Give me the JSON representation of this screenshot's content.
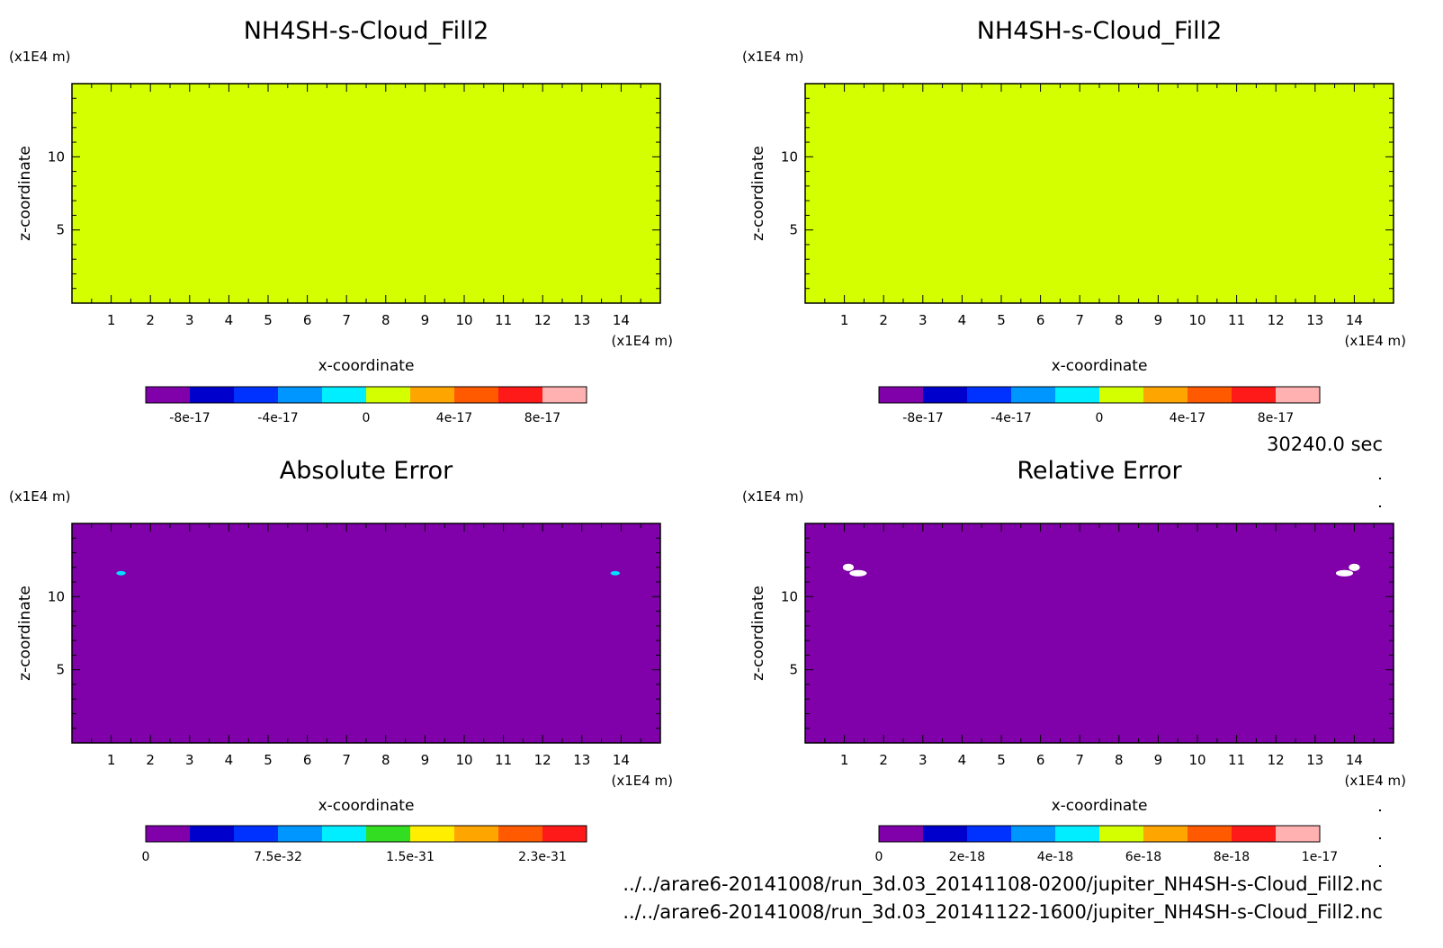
{
  "time_label": "30240.0 sec",
  "footer": {
    "line1": "../../arare6-20141008/run_3d.03_20141108-0200/jupiter_NH4SH-s-Cloud_Fill2.nc",
    "line2": "../../arare6-20141008/run_3d.03_20141122-1600/jupiter_NH4SH-s-Cloud_Fill2.nc"
  },
  "colors": {
    "fill_zero": "#d4ff00",
    "fill_low": "#8000aa",
    "cyan": "#00e0ff",
    "white": "#ffffff"
  },
  "chart_data": [
    {
      "type": "heatmap",
      "title": "NH4SH-s-Cloud_Fill2",
      "xlabel": "x-coordinate",
      "ylabel": "z-coordinate",
      "x_unit": "(x1E4 m)",
      "y_unit": "(x1E4 m)",
      "xlim": [
        0,
        15
      ],
      "ylim": [
        0,
        15
      ],
      "x_ticks": [
        1,
        2,
        3,
        4,
        5,
        6,
        7,
        8,
        9,
        10,
        11,
        12,
        13,
        14
      ],
      "y_ticks": [
        5,
        10
      ],
      "background": "#d4ff00",
      "features": [],
      "colorbar": {
        "colors": [
          "#8000aa",
          "#0000cd",
          "#0032ff",
          "#0096ff",
          "#00eeff",
          "#d4ff00",
          "#ffa500",
          "#ff5a00",
          "#ff1a1a",
          "#ffb0b0"
        ],
        "labels": [
          "-8e-17",
          "-4e-17",
          "0",
          "4e-17",
          "8e-17"
        ],
        "label_positions": [
          1,
          3,
          5,
          7,
          9
        ]
      }
    },
    {
      "type": "heatmap",
      "title": "NH4SH-s-Cloud_Fill2",
      "xlabel": "x-coordinate",
      "ylabel": "z-coordinate",
      "x_unit": "(x1E4 m)",
      "y_unit": "(x1E4 m)",
      "xlim": [
        0,
        15
      ],
      "ylim": [
        0,
        15
      ],
      "x_ticks": [
        1,
        2,
        3,
        4,
        5,
        6,
        7,
        8,
        9,
        10,
        11,
        12,
        13,
        14
      ],
      "y_ticks": [
        5,
        10
      ],
      "background": "#d4ff00",
      "features": [],
      "colorbar": {
        "colors": [
          "#8000aa",
          "#0000cd",
          "#0032ff",
          "#0096ff",
          "#00eeff",
          "#d4ff00",
          "#ffa500",
          "#ff5a00",
          "#ff1a1a",
          "#ffb0b0"
        ],
        "labels": [
          "-8e-17",
          "-4e-17",
          "0",
          "4e-17",
          "8e-17"
        ],
        "label_positions": [
          1,
          3,
          5,
          7,
          9
        ]
      }
    },
    {
      "type": "heatmap",
      "title": "Absolute Error",
      "xlabel": "x-coordinate",
      "ylabel": "z-coordinate",
      "x_unit": "(x1E4 m)",
      "y_unit": "(x1E4 m)",
      "xlim": [
        0,
        15
      ],
      "ylim": [
        0,
        15
      ],
      "x_ticks": [
        1,
        2,
        3,
        4,
        5,
        6,
        7,
        8,
        9,
        10,
        11,
        12,
        13,
        14
      ],
      "y_ticks": [
        5,
        10
      ],
      "background": "#8000aa",
      "features": [
        {
          "x": 1.25,
          "z": 11.6,
          "rx": 0.12,
          "rz": 0.15,
          "color": "#00e0ff"
        },
        {
          "x": 13.85,
          "z": 11.6,
          "rx": 0.12,
          "rz": 0.15,
          "color": "#00e0ff"
        }
      ],
      "colorbar": {
        "colors": [
          "#8000aa",
          "#0000cd",
          "#0032ff",
          "#0096ff",
          "#00eeff",
          "#33dd22",
          "#ffee00",
          "#ffa500",
          "#ff5a00",
          "#ff1a1a"
        ],
        "labels": [
          "0",
          "7.5e-32",
          "1.5e-31",
          "2.3e-31"
        ],
        "label_positions": [
          0,
          3,
          6,
          9
        ]
      }
    },
    {
      "type": "heatmap",
      "title": "Relative Error",
      "xlabel": "x-coordinate",
      "ylabel": "z-coordinate",
      "x_unit": "(x1E4 m)",
      "y_unit": "(x1E4 m)",
      "xlim": [
        0,
        15
      ],
      "ylim": [
        0,
        15
      ],
      "x_ticks": [
        1,
        2,
        3,
        4,
        5,
        6,
        7,
        8,
        9,
        10,
        11,
        12,
        13,
        14
      ],
      "y_ticks": [
        5,
        10
      ],
      "background": "#8000aa",
      "features": [
        {
          "x": 1.1,
          "z": 12.0,
          "rx": 0.14,
          "rz": 0.25,
          "color": "#ffffff"
        },
        {
          "x": 1.35,
          "z": 11.6,
          "rx": 0.22,
          "rz": 0.22,
          "color": "#ffffff"
        },
        {
          "x": 14.0,
          "z": 12.0,
          "rx": 0.14,
          "rz": 0.25,
          "color": "#ffffff"
        },
        {
          "x": 13.75,
          "z": 11.6,
          "rx": 0.22,
          "rz": 0.22,
          "color": "#ffffff"
        }
      ],
      "colorbar": {
        "colors": [
          "#8000aa",
          "#0000cd",
          "#0032ff",
          "#0096ff",
          "#00eeff",
          "#d4ff00",
          "#ffa500",
          "#ff5a00",
          "#ff1a1a",
          "#ffb0b0"
        ],
        "labels": [
          "0",
          "2e-18",
          "4e-18",
          "6e-18",
          "8e-18",
          "1e-17"
        ],
        "label_positions": [
          0,
          2,
          4,
          6,
          8,
          10
        ]
      }
    }
  ]
}
